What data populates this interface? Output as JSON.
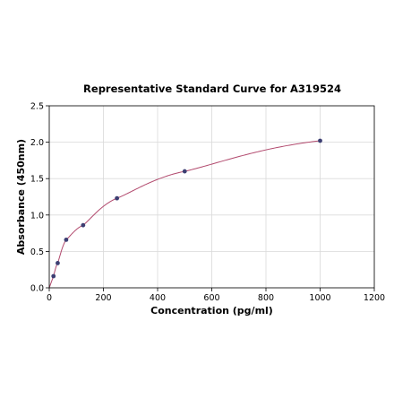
{
  "chart_data": {
    "type": "scatter",
    "title": "Representative Standard Curve for A319524",
    "xlabel": "Concentration (pg/ml)",
    "ylabel": "Absorbance (450nm)",
    "xlim": [
      0,
      1200
    ],
    "ylim": [
      0,
      2.5
    ],
    "xticks": [
      0,
      200,
      400,
      600,
      800,
      1000,
      1200
    ],
    "yticks": [
      0.0,
      0.5,
      1.0,
      1.5,
      2.0,
      2.5
    ],
    "xtick_labels": [
      "0",
      "200",
      "400",
      "600",
      "800",
      "1000",
      "1200"
    ],
    "ytick_labels": [
      "0.0",
      "0.5",
      "1.0",
      "1.5",
      "2.0",
      "2.5"
    ],
    "grid": true,
    "series": [
      {
        "x": [
          15.6,
          31.2,
          62.5,
          125,
          250,
          500,
          1000
        ],
        "y": [
          0.16,
          0.34,
          0.66,
          0.86,
          1.23,
          1.6,
          2.02
        ],
        "marker_color": "#3d3f73",
        "fit_line_color": "#b24a6e"
      }
    ]
  }
}
